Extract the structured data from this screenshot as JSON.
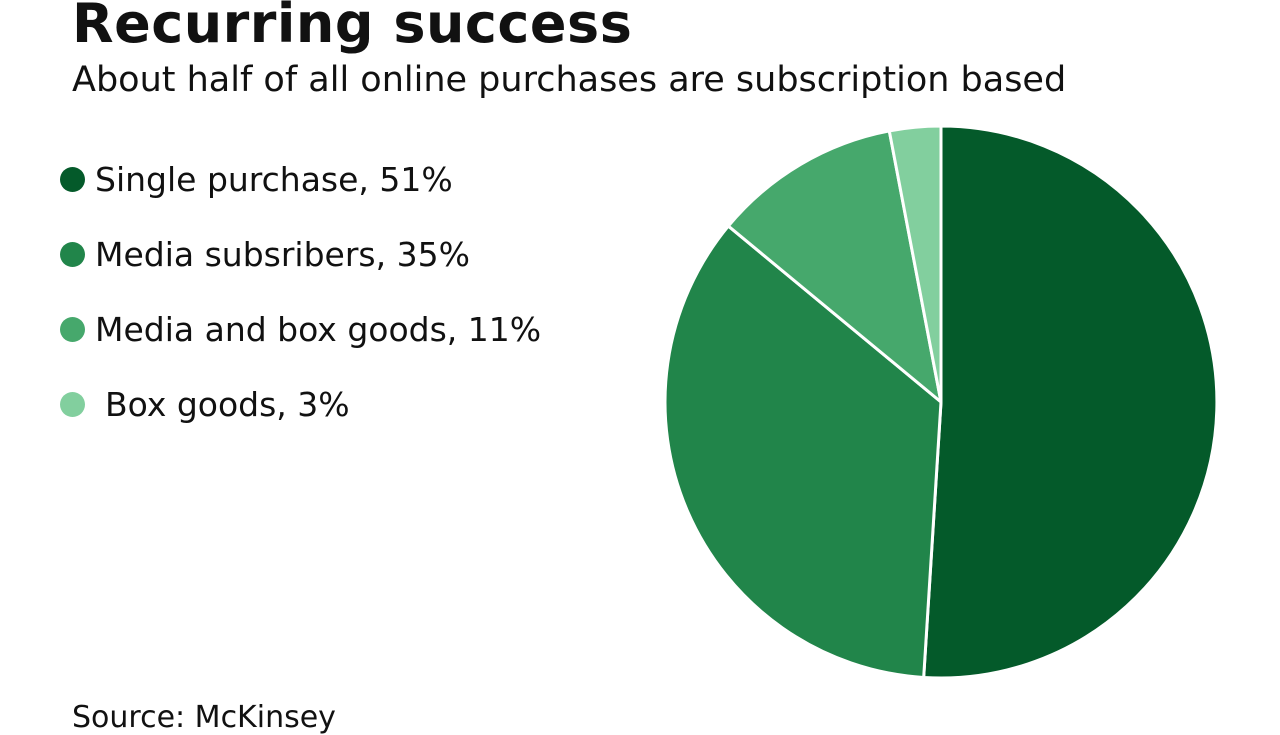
{
  "title": "Recurring success",
  "subtitle": "About half of all online purchases are subscription based",
  "source": "Source: McKinsey",
  "chart_data": {
    "type": "pie",
    "legend_position": "left",
    "slices": [
      {
        "label": "Single purchase, 51%",
        "name": "Single purchase",
        "value": 51,
        "color": "#045a2a"
      },
      {
        "label": "Media subsribers, 35%",
        "name": "Media subsribers",
        "value": 35,
        "color": "#21854a"
      },
      {
        "label": "Media and box goods, 11%",
        "name": "Media and box goods",
        "value": 11,
        "color": "#46a86c"
      },
      {
        "label": "Box goods, 3%",
        "name": "Box goods",
        "value": 3,
        "color": "#82cf9e"
      }
    ]
  }
}
